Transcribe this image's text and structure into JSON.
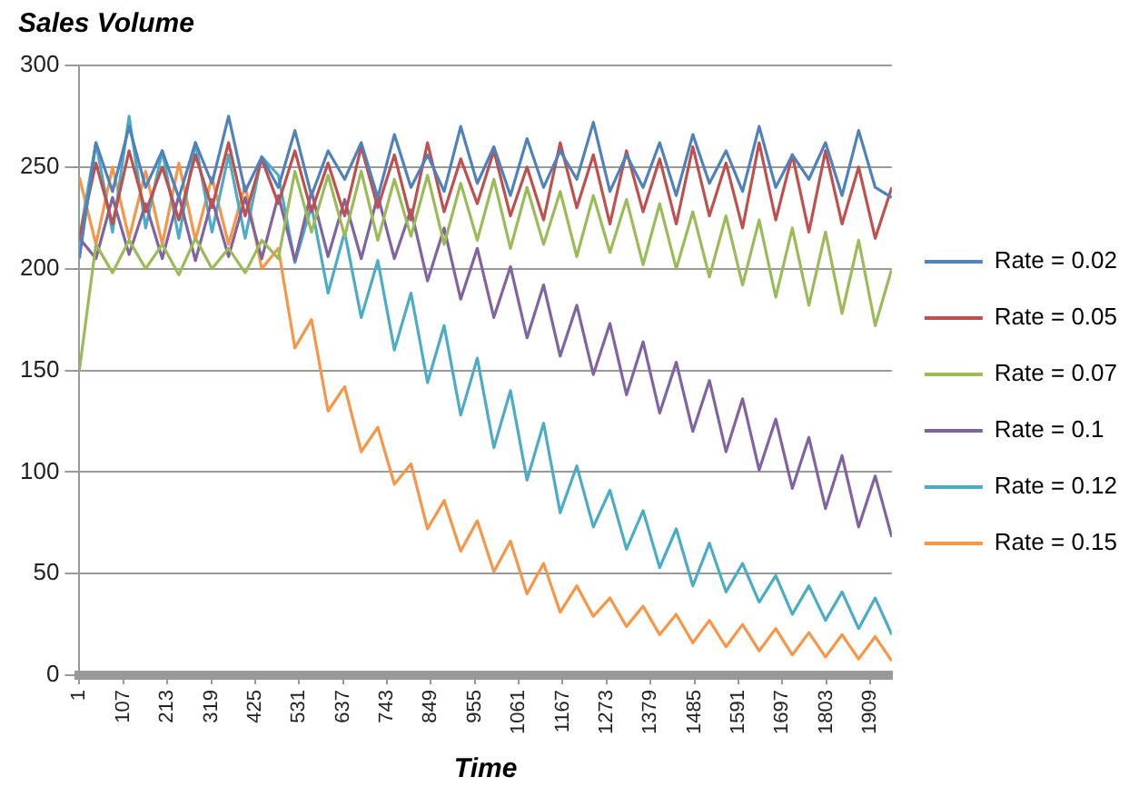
{
  "chart_data": {
    "type": "line",
    "ylabel": "Sales Volume",
    "xlabel": "Time",
    "x": [
      1,
      41,
      81,
      121,
      161,
      201,
      241,
      281,
      321,
      361,
      401,
      441,
      481,
      521,
      561,
      601,
      641,
      681,
      721,
      761,
      801,
      841,
      881,
      921,
      961,
      1001,
      1041,
      1081,
      1121,
      1161,
      1201,
      1241,
      1281,
      1321,
      1361,
      1401,
      1441,
      1481,
      1521,
      1561,
      1601,
      1641,
      1681,
      1721,
      1761,
      1801,
      1841,
      1881,
      1921,
      1961
    ],
    "xlim": [
      1,
      1961
    ],
    "xticks": [
      1,
      107,
      213,
      319,
      425,
      531,
      637,
      743,
      849,
      955,
      1061,
      1167,
      1273,
      1379,
      1485,
      1591,
      1697,
      1803,
      1909
    ],
    "ylim": [
      0,
      300
    ],
    "yticks": [
      0,
      50,
      100,
      150,
      200,
      250,
      300
    ],
    "grid": "y",
    "legend": "right",
    "marker": "none",
    "line_style": "solid",
    "series": [
      {
        "name": "Rate = 0.02",
        "color": "#4f81bd",
        "values": [
          205,
          262,
          238,
          270,
          240,
          258,
          235,
          262,
          242,
          275,
          238,
          255,
          240,
          268,
          236,
          258,
          244,
          262,
          235,
          266,
          240,
          256,
          238,
          270,
          242,
          260,
          236,
          264,
          240,
          258,
          244,
          272,
          238,
          256,
          240,
          262,
          236,
          266,
          242,
          258,
          238,
          270,
          240,
          256,
          244,
          262,
          236,
          268,
          240,
          235
        ]
      },
      {
        "name": "Rate = 0.05",
        "color": "#c0504d",
        "values": [
          215,
          252,
          222,
          258,
          228,
          250,
          224,
          256,
          230,
          262,
          226,
          254,
          232,
          258,
          228,
          252,
          226,
          260,
          230,
          256,
          224,
          262,
          228,
          254,
          232,
          258,
          226,
          250,
          224,
          262,
          230,
          256,
          222,
          258,
          228,
          254,
          222,
          260,
          226,
          252,
          220,
          262,
          224,
          256,
          218,
          258,
          222,
          250,
          215,
          240
        ]
      },
      {
        "name": "Rate = 0.07",
        "color": "#9bbb59",
        "values": [
          150,
          212,
          198,
          214,
          200,
          212,
          197,
          215,
          200,
          210,
          198,
          214,
          205,
          248,
          218,
          246,
          216,
          248,
          214,
          244,
          216,
          246,
          212,
          242,
          214,
          244,
          210,
          240,
          212,
          238,
          206,
          236,
          208,
          234,
          202,
          232,
          200,
          228,
          196,
          226,
          192,
          224,
          186,
          220,
          182,
          218,
          178,
          214,
          172,
          200
        ]
      },
      {
        "name": "Rate = 0.1",
        "color": "#8064a2",
        "values": [
          215,
          205,
          235,
          207,
          232,
          205,
          236,
          204,
          234,
          206,
          235,
          205,
          236,
          204,
          238,
          206,
          234,
          205,
          236,
          205,
          229,
          194,
          220,
          185,
          210,
          176,
          201,
          166,
          192,
          157,
          182,
          148,
          173,
          138,
          164,
          129,
          154,
          120,
          145,
          110,
          136,
          101,
          126,
          92,
          117,
          82,
          108,
          73,
          98,
          68
        ]
      },
      {
        "name": "Rate = 0.12",
        "color": "#4bacc6",
        "values": [
          215,
          262,
          218,
          275,
          220,
          258,
          215,
          262,
          218,
          256,
          215,
          255,
          246,
          203,
          231,
          188,
          218,
          176,
          204,
          160,
          188,
          144,
          172,
          128,
          156,
          112,
          140,
          96,
          124,
          80,
          103,
          73,
          91,
          62,
          81,
          53,
          72,
          44,
          65,
          41,
          55,
          36,
          49,
          30,
          44,
          27,
          41,
          23,
          38,
          20
        ]
      },
      {
        "name": "Rate = 0.15",
        "color": "#f79646",
        "values": [
          245,
          212,
          250,
          215,
          248,
          212,
          252,
          214,
          245,
          212,
          241,
          200,
          210,
          161,
          175,
          130,
          142,
          110,
          122,
          94,
          104,
          72,
          86,
          61,
          76,
          51,
          66,
          40,
          55,
          31,
          44,
          29,
          38,
          24,
          34,
          20,
          30,
          16,
          27,
          14,
          25,
          12,
          23,
          10,
          21,
          9,
          20,
          8,
          19,
          7
        ]
      }
    ]
  }
}
